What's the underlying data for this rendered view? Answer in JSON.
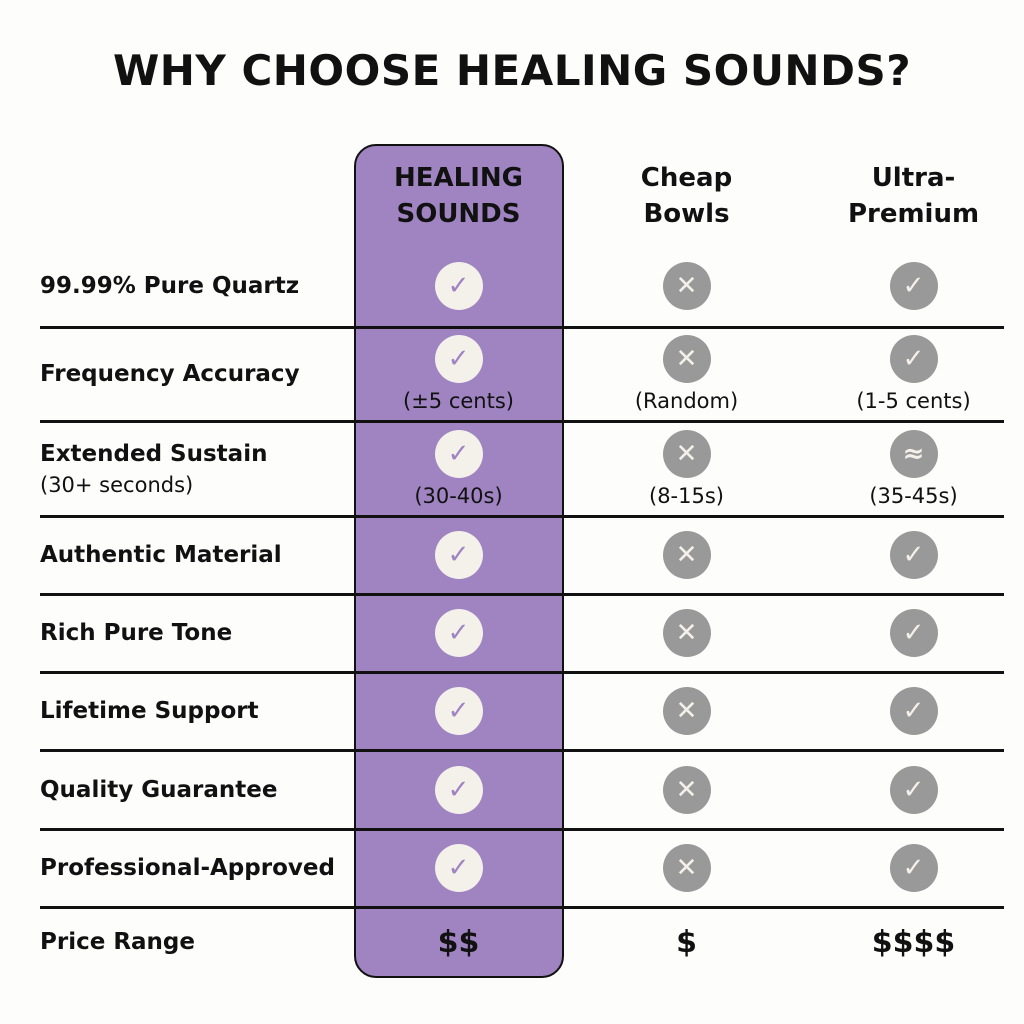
{
  "title": "WHY CHOOSE HEALING SOUNDS?",
  "colors": {
    "highlight": "#9f84c1",
    "check_fill_highlight": "#f3f1ea",
    "icon_gray": "#999999",
    "line": "#111111"
  },
  "columns": [
    {
      "name": "HEALING SOUNDS",
      "line1": "HEALING",
      "line2": "SOUNDS"
    },
    {
      "name": "Cheap Bowls",
      "line1": "Cheap",
      "line2": "Bowls"
    },
    {
      "name": "Ultra-Premium",
      "line1": "Ultra-",
      "line2": "Premium"
    }
  ],
  "rows": [
    {
      "label": "99.99% Pure Quartz",
      "cells": [
        {
          "icon": "check"
        },
        {
          "icon": "cross"
        },
        {
          "icon": "check"
        }
      ]
    },
    {
      "label": "Frequency Accuracy",
      "cells": [
        {
          "icon": "check",
          "note": "(±5 cents)"
        },
        {
          "icon": "cross",
          "note": "(Random)"
        },
        {
          "icon": "check",
          "note": "(1-5 cents)"
        }
      ]
    },
    {
      "label": "Extended Sustain",
      "sublabel": "(30+ seconds)",
      "cells": [
        {
          "icon": "check",
          "note": "(30-40s)"
        },
        {
          "icon": "cross",
          "note": "(8-15s)"
        },
        {
          "icon": "approx",
          "note": "(35-45s)"
        }
      ]
    },
    {
      "label": "Authentic Material",
      "cells": [
        {
          "icon": "check"
        },
        {
          "icon": "cross"
        },
        {
          "icon": "check"
        }
      ]
    },
    {
      "label": "Rich Pure Tone",
      "cells": [
        {
          "icon": "check"
        },
        {
          "icon": "cross"
        },
        {
          "icon": "check"
        }
      ]
    },
    {
      "label": "Lifetime Support",
      "cells": [
        {
          "icon": "check"
        },
        {
          "icon": "cross"
        },
        {
          "icon": "check"
        }
      ]
    },
    {
      "label": "Quality Guarantee",
      "cells": [
        {
          "icon": "check"
        },
        {
          "icon": "cross"
        },
        {
          "icon": "check"
        }
      ]
    },
    {
      "label": "Professional-Approved",
      "cells": [
        {
          "icon": "check"
        },
        {
          "icon": "cross"
        },
        {
          "icon": "check"
        }
      ]
    },
    {
      "label": "Price Range",
      "cells": [
        {
          "text": "$$"
        },
        {
          "text": "$"
        },
        {
          "text": "$$$$"
        }
      ]
    }
  ]
}
